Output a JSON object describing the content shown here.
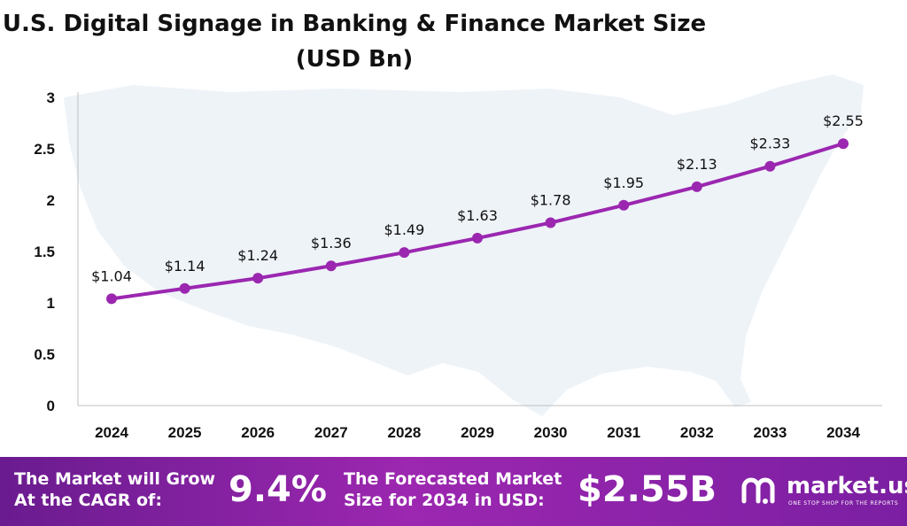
{
  "chart_data": {
    "type": "line",
    "title": "U.S. Digital Signage in Banking & Finance Market Size",
    "subtitle": "(USD Bn)",
    "categories": [
      "2024",
      "2025",
      "2026",
      "2027",
      "2028",
      "2029",
      "2030",
      "2031",
      "2032",
      "2033",
      "2034"
    ],
    "series": [
      {
        "values": [
          1.04,
          1.14,
          1.24,
          1.36,
          1.49,
          1.63,
          1.78,
          1.95,
          2.13,
          2.33,
          2.55
        ],
        "labels": [
          "$1.04",
          "$1.14",
          "$1.24",
          "$1.36",
          "$1.49",
          "$1.63",
          "$1.78",
          "$1.95",
          "$2.13",
          "$2.33",
          "$2.55"
        ]
      }
    ],
    "yticks": [
      "0",
      "0.5",
      "1",
      "1.5",
      "2",
      "2.5",
      "3"
    ],
    "ylim": [
      0,
      3
    ],
    "grid": false,
    "legend": "none",
    "line_color": "#9b27b0"
  },
  "footer": {
    "cagr_text_line1": "The Market will Grow",
    "cagr_text_line2": "At the CAGR of:",
    "cagr_value": "9.4%",
    "forecast_text_line1": "The Forecasted Market",
    "forecast_text_line2": "Size for 2034 in USD:",
    "forecast_value": "$2.55B",
    "brand_name": "market.us",
    "brand_tagline": "ONE STOP SHOP FOR THE REPORTS"
  }
}
